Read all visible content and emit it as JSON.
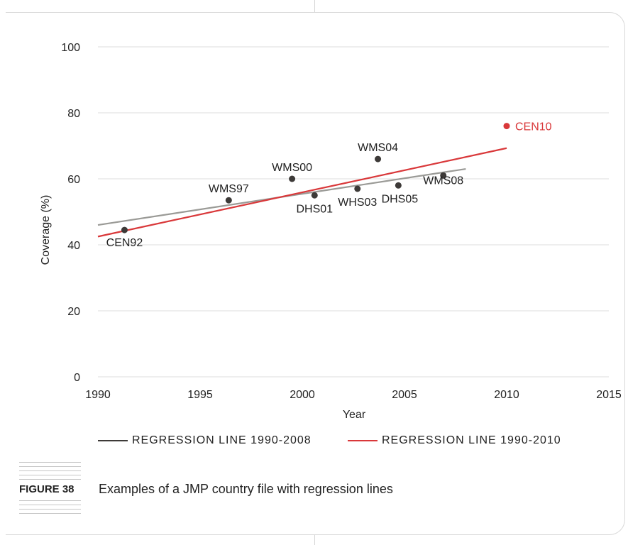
{
  "figure": {
    "label": "FIGURE 38",
    "caption": "Examples of a JMP country file with regression lines"
  },
  "chart_data": {
    "type": "scatter",
    "xlabel": "Year",
    "ylabel": "Coverage (%)",
    "xlim": [
      1990,
      2015
    ],
    "ylim": [
      0,
      100
    ],
    "xticks": [
      1990,
      1995,
      2000,
      2005,
      2010,
      2015
    ],
    "yticks": [
      0,
      20,
      40,
      60,
      80,
      100
    ],
    "grid": "horizontal",
    "points": [
      {
        "label": "CEN92",
        "x": 1991.3,
        "y": 44.5,
        "color": "#3d3a38"
      },
      {
        "label": "WMS97",
        "x": 1996.4,
        "y": 53.5,
        "color": "#3d3a38"
      },
      {
        "label": "WMS00",
        "x": 1999.5,
        "y": 60.0,
        "color": "#3d3a38"
      },
      {
        "label": "DHS01",
        "x": 2000.6,
        "y": 55.0,
        "color": "#3d3a38"
      },
      {
        "label": "WHS03",
        "x": 2002.7,
        "y": 57.0,
        "color": "#3d3a38"
      },
      {
        "label": "WMS04",
        "x": 2003.7,
        "y": 66.0,
        "color": "#3d3a38"
      },
      {
        "label": "DHS05",
        "x": 2004.7,
        "y": 58.0,
        "color": "#3d3a38"
      },
      {
        "label": "WMS08",
        "x": 2006.9,
        "y": 61.0,
        "color": "#3d3a38"
      },
      {
        "label": "CEN10",
        "x": 2010.0,
        "y": 76.0,
        "color": "#d9383a"
      }
    ],
    "series": [
      {
        "name": "REGRESSION LINE 1990-2008",
        "color": "#9a9a96",
        "legend_color": "#3d3a38",
        "x": [
          1990,
          2008
        ],
        "y": [
          46.0,
          63.0
        ]
      },
      {
        "name": "REGRESSION LINE 1990-2010",
        "color": "#d9383a",
        "legend_color": "#d9383a",
        "x": [
          1990,
          2010
        ],
        "y": [
          42.5,
          69.3
        ]
      }
    ]
  }
}
